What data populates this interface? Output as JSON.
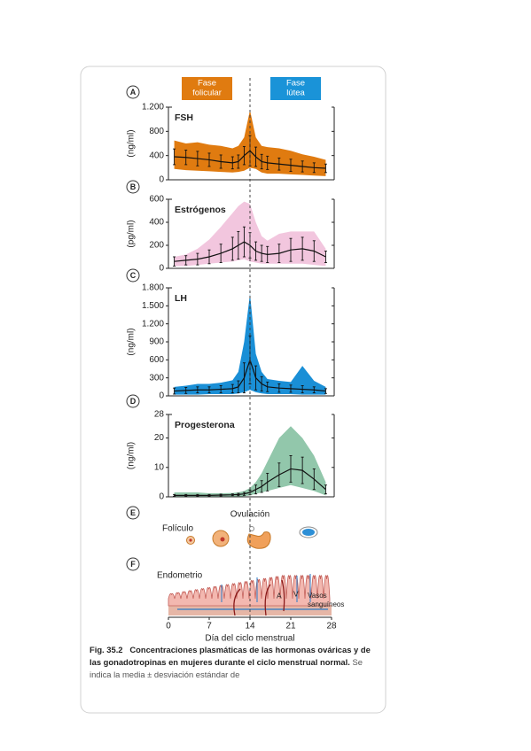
{
  "panel_letters": [
    "A",
    "B",
    "C",
    "D",
    "E",
    "F"
  ],
  "phases": [
    {
      "lines": [
        "Fase",
        "folicular"
      ],
      "color": "#e07b10"
    },
    {
      "lines": [
        "Fase",
        "lútea"
      ],
      "color": "#1a93d8"
    }
  ],
  "ovulation_day": 14,
  "chart_data": [
    {
      "type": "line",
      "title": "FSH",
      "ylabel": "(ng/ml)",
      "xlim": [
        0,
        28
      ],
      "ylim": [
        0,
        1200
      ],
      "yticks": [
        0,
        400,
        800,
        {
          "value": 1200,
          "label": "1.200"
        }
      ],
      "x": [
        1,
        3,
        5,
        7,
        9,
        11,
        12,
        13,
        14,
        15,
        16,
        17,
        19,
        21,
        23,
        25,
        27
      ],
      "series": [
        {
          "color": "#111111",
          "values": [
            380,
            370,
            350,
            330,
            300,
            280,
            300,
            400,
            480,
            380,
            300,
            280,
            260,
            240,
            220,
            200,
            190
          ],
          "errors": [
            130,
            120,
            120,
            110,
            110,
            100,
            110,
            150,
            250,
            160,
            120,
            110,
            100,
            100,
            90,
            80,
            70
          ]
        }
      ],
      "band": {
        "color": "#e07b10",
        "high": [
          650,
          600,
          620,
          580,
          560,
          520,
          560,
          700,
          1150,
          700,
          560,
          540,
          520,
          480,
          420,
          380,
          330
        ],
        "low": [
          180,
          160,
          150,
          140,
          130,
          120,
          130,
          150,
          200,
          180,
          120,
          100,
          100,
          90,
          80,
          70,
          60
        ]
      }
    },
    {
      "type": "line",
      "title": "Estrógenos",
      "ylabel": "(pg/ml)",
      "xlim": [
        0,
        28
      ],
      "ylim": [
        0,
        600
      ],
      "yticks": [
        0,
        200,
        400,
        600
      ],
      "x": [
        1,
        3,
        5,
        7,
        9,
        11,
        12,
        13,
        14,
        15,
        16,
        17,
        19,
        21,
        23,
        25,
        27
      ],
      "series": [
        {
          "color": "#111111",
          "values": [
            60,
            70,
            80,
            100,
            130,
            170,
            200,
            230,
            200,
            150,
            130,
            120,
            130,
            160,
            170,
            150,
            100
          ],
          "errors": [
            40,
            40,
            50,
            60,
            80,
            100,
            120,
            130,
            110,
            80,
            70,
            70,
            80,
            100,
            100,
            90,
            50
          ]
        }
      ],
      "band": {
        "color": "#f2c6de",
        "high": [
          100,
          120,
          170,
          250,
          360,
          480,
          540,
          580,
          560,
          400,
          280,
          240,
          300,
          320,
          320,
          320,
          170
        ],
        "low": [
          20,
          20,
          30,
          40,
          50,
          60,
          70,
          80,
          60,
          50,
          40,
          40,
          40,
          40,
          40,
          30,
          20
        ]
      }
    },
    {
      "type": "line",
      "title": "LH",
      "ylabel": "(ng/ml)",
      "xlim": [
        0,
        28
      ],
      "ylim": [
        0,
        1800
      ],
      "yticks": [
        0,
        300,
        600,
        900,
        {
          "value": 1200,
          "label": "1.200"
        },
        {
          "value": 1500,
          "label": "1.500"
        },
        {
          "value": 1800,
          "label": "1.800"
        }
      ],
      "x": [
        1,
        3,
        5,
        7,
        9,
        11,
        12,
        13,
        14,
        15,
        16,
        17,
        19,
        21,
        23,
        25,
        27
      ],
      "series": [
        {
          "color": "#111111",
          "values": [
            80,
            90,
            100,
            100,
            110,
            120,
            150,
            300,
            600,
            300,
            200,
            150,
            130,
            120,
            110,
            100,
            80
          ],
          "errors": [
            50,
            50,
            50,
            50,
            60,
            70,
            100,
            250,
            400,
            200,
            120,
            80,
            70,
            60,
            60,
            50,
            40
          ]
        }
      ],
      "band": {
        "color": "#1a8fd6",
        "high": [
          150,
          170,
          200,
          200,
          220,
          260,
          400,
          900,
          1700,
          700,
          400,
          280,
          250,
          230,
          500,
          250,
          150
        ],
        "low": [
          20,
          20,
          20,
          30,
          30,
          30,
          40,
          60,
          100,
          60,
          40,
          30,
          30,
          30,
          20,
          20,
          20
        ]
      }
    },
    {
      "type": "line",
      "title": "Progesterona",
      "ylabel": "(ng/ml)",
      "xlim": [
        0,
        28
      ],
      "ylim": [
        0,
        28
      ],
      "yticks": [
        0,
        10,
        20,
        28
      ],
      "x": [
        1,
        3,
        5,
        7,
        9,
        11,
        12,
        13,
        14,
        15,
        16,
        17,
        19,
        21,
        23,
        25,
        27
      ],
      "series": [
        {
          "color": "#111111",
          "values": [
            0.5,
            0.5,
            0.5,
            0.5,
            0.6,
            0.7,
            0.8,
            1,
            1.5,
            2.5,
            3.5,
            5,
            7.5,
            9.5,
            9,
            6,
            2.5
          ],
          "errors": [
            0.3,
            0.3,
            0.3,
            0.3,
            0.3,
            0.3,
            0.4,
            0.5,
            0.8,
            1.5,
            2,
            3,
            4,
            4.5,
            4.5,
            3.5,
            1.5
          ]
        }
      ],
      "band": {
        "color": "#92c7ab",
        "high": [
          1.5,
          1.5,
          1.5,
          1.2,
          1.2,
          1.3,
          1.5,
          2,
          3,
          5,
          8,
          12,
          20,
          24,
          20,
          14,
          5
        ],
        "low": [
          0,
          0,
          0,
          0,
          0,
          0,
          0,
          0.2,
          0.5,
          1,
          1.5,
          2,
          3,
          4,
          3,
          2,
          0.5
        ]
      }
    }
  ],
  "x_axis": {
    "label": "Día del ciclo menstrual",
    "xlim": [
      0,
      28
    ],
    "xticks": [
      0,
      7,
      14,
      21,
      28
    ]
  },
  "diagram": {
    "follicle": "Folículo",
    "ovulation": "Ovulación",
    "endometrium": "Endometrio",
    "vessels": [
      "Vasos",
      "sanguíneos"
    ],
    "artery": "A",
    "vein": "V"
  },
  "caption": {
    "label": "Fig. 35.2",
    "bold": "Concentraciones plasmáticas de las hormonas ováricas y de las gonadotropinas en mujeres durante el ciclo menstrual normal.",
    "text": "Se indica la media ± desviación estándar de"
  }
}
